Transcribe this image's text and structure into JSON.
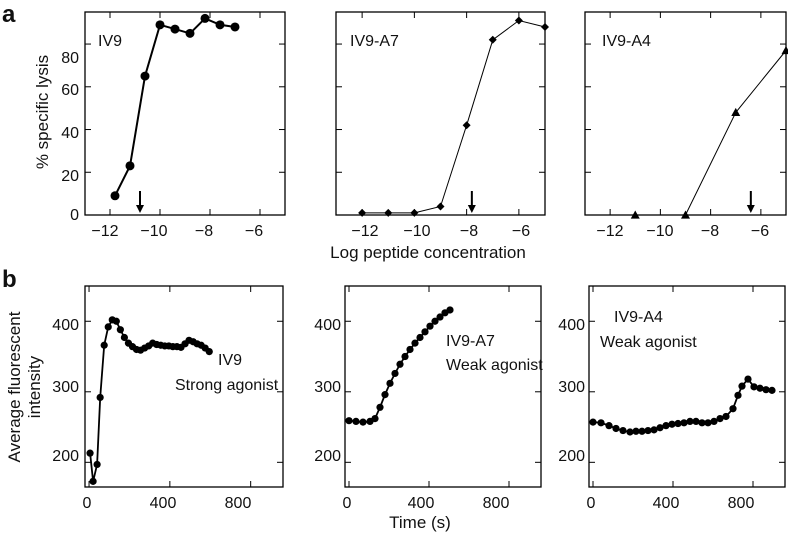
{
  "panel_labels": {
    "a": "a",
    "b": "b"
  },
  "a": {
    "ylabel": "% specific lysis",
    "xlabel": "Log peptide concentration",
    "xticks": [
      "−12",
      "−10",
      "−8",
      "−6"
    ],
    "yticks": [
      "0",
      "20",
      "40",
      "60",
      "80"
    ]
  },
  "b": {
    "ylabel_line1": "Average fluorescent",
    "ylabel_line2": "intensity",
    "xlabel": "Time (s)",
    "xticks": [
      "0",
      "400",
      "800"
    ],
    "yticks": [
      "200",
      "300",
      "400"
    ]
  },
  "chart_data": [
    {
      "type": "line",
      "panel": "a",
      "title": "IV9",
      "marker": "circle",
      "x": [
        -11.8,
        -11.2,
        -10.6,
        -10.0,
        -9.4,
        -8.8,
        -8.2,
        -7.6,
        -7.0
      ],
      "y": [
        9,
        23,
        65,
        89,
        87,
        85,
        92,
        89,
        88
      ],
      "xlim": [
        -13,
        -5
      ],
      "ylim": [
        0,
        95
      ],
      "arrow_at_x": -10.8,
      "xlabel": "Log peptide concentration",
      "ylabel": "% specific lysis"
    },
    {
      "type": "line",
      "panel": "a",
      "title": "IV9-A7",
      "marker": "diamond",
      "x": [
        -12,
        -11,
        -10,
        -9,
        -8,
        -7,
        -6,
        -5
      ],
      "y": [
        1,
        1,
        1,
        4,
        42,
        82,
        91,
        88
      ],
      "xlim": [
        -13,
        -5
      ],
      "ylim": [
        0,
        95
      ],
      "arrow_at_x": -7.8,
      "xlabel": "Log peptide concentration",
      "ylabel": ""
    },
    {
      "type": "line",
      "panel": "a",
      "title": "IV9-A4",
      "marker": "triangle",
      "x": [
        -11,
        -9,
        -7,
        -5
      ],
      "y": [
        0,
        0,
        48,
        77
      ],
      "xlim": [
        -13,
        -5
      ],
      "ylim": [
        0,
        95
      ],
      "arrow_at_x": -6.4,
      "xlabel": "Log peptide concentration",
      "ylabel": ""
    },
    {
      "type": "line",
      "panel": "b",
      "title": "IV9",
      "annotation": "Strong agonist",
      "marker": "circle",
      "x": [
        5,
        20,
        40,
        55,
        75,
        95,
        115,
        135,
        155,
        175,
        195,
        215,
        235,
        255,
        275,
        295,
        315,
        335,
        355,
        375,
        395,
        415,
        435,
        455,
        475,
        495,
        515,
        535,
        555,
        575,
        595
      ],
      "y": [
        213,
        173,
        197,
        292,
        366,
        392,
        402,
        400,
        388,
        377,
        369,
        364,
        360,
        359,
        362,
        365,
        369,
        367,
        366,
        365,
        365,
        364,
        364,
        363,
        368,
        373,
        371,
        368,
        366,
        362,
        357
      ],
      "xlim": [
        -20,
        960
      ],
      "ylim": [
        165,
        450
      ],
      "xlabel": "",
      "ylabel": "Average fluorescent intensity"
    },
    {
      "type": "line",
      "panel": "b",
      "title": "IV9-A7",
      "annotation": "Weak agonist",
      "marker": "circle",
      "x": [
        0,
        35,
        70,
        105,
        130,
        155,
        180,
        205,
        230,
        255,
        280,
        305,
        330,
        355,
        380,
        405,
        430,
        455,
        480,
        505
      ],
      "y": [
        259,
        258,
        257,
        258,
        262,
        278,
        296,
        312,
        326,
        339,
        350,
        360,
        369,
        377,
        385,
        393,
        400,
        406,
        412,
        416
      ],
      "xlim": [
        -20,
        960
      ],
      "ylim": [
        165,
        450
      ],
      "xlabel": "Time (s)",
      "ylabel": ""
    },
    {
      "type": "line",
      "panel": "b",
      "title": "IV9-A4",
      "annotation": "Weak agonist",
      "marker": "circle",
      "x": [
        0,
        40,
        80,
        115,
        150,
        185,
        215,
        245,
        275,
        305,
        335,
        365,
        395,
        425,
        455,
        485,
        515,
        545,
        575,
        605,
        635,
        665,
        700,
        725,
        745,
        775,
        805,
        835,
        865,
        895
      ],
      "y": [
        257,
        256,
        252,
        248,
        245,
        243,
        244,
        244,
        245,
        246,
        249,
        252,
        254,
        255,
        256,
        258,
        258,
        256,
        256,
        258,
        262,
        265,
        276,
        295,
        308,
        318,
        307,
        305,
        303,
        302
      ],
      "xlim": [
        -20,
        960
      ],
      "ylim": [
        165,
        450
      ],
      "xlabel": "",
      "ylabel": ""
    }
  ]
}
